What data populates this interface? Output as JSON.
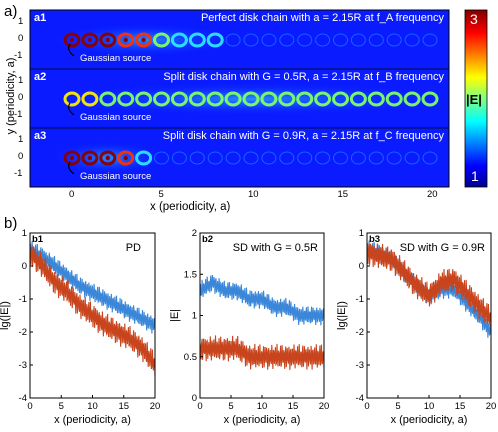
{
  "panel_a": {
    "label": "a)",
    "ylabel": "y (periodicity, a)",
    "xlabel": "x (periodicity, a)",
    "xticks": [
      "0",
      "5",
      "10",
      "15",
      "20"
    ],
    "yticks": [
      "1",
      "0",
      "-1"
    ],
    "colorbar": {
      "max": "3",
      "min": "1",
      "label": "|E|"
    },
    "subpanels": [
      {
        "tag": "a1",
        "title": "Perfect disk chain with a = 2.15R at f_A frequency",
        "source": "Gaussian source"
      },
      {
        "tag": "a2",
        "title": "Split disk chain with G = 0.5R, a = 2.15R at f_B frequency",
        "source": "Gaussian source"
      },
      {
        "tag": "a3",
        "title": "Split disk chain with G = 0.9R, a = 2.15R at f_C frequency",
        "source": "Gaussian source"
      }
    ]
  },
  "panel_b": {
    "label": "b)",
    "colors": {
      "blue": "#3a86d8",
      "red": "#c8441c"
    }
  },
  "chart_data": [
    {
      "type": "line",
      "panel": "b1",
      "title": "PD",
      "xlabel": "x (periodicity, a)",
      "ylabel": "lg(|E|)",
      "xlim": [
        0,
        20
      ],
      "ylim": [
        -4,
        1
      ],
      "xticks": [
        "0",
        "5",
        "10",
        "15",
        "20"
      ],
      "yticks": [
        "1",
        "0",
        "-1",
        "-2",
        "-3",
        "-4"
      ],
      "series": [
        {
          "x": [
            0,
            2,
            4,
            6,
            8,
            10,
            12,
            14,
            16,
            18,
            20
          ],
          "values": [
            0.5,
            0.3,
            0.0,
            -0.3,
            -0.6,
            -0.8,
            -1.0,
            -1.2,
            -1.4,
            -1.6,
            -1.8
          ]
        },
        {
          "x": [
            0,
            2,
            4,
            6,
            8,
            10,
            12,
            14,
            16,
            18,
            20
          ],
          "values": [
            0.4,
            0.0,
            -0.5,
            -0.8,
            -1.2,
            -1.5,
            -1.8,
            -2.0,
            -2.2,
            -2.5,
            -3.0
          ]
        }
      ]
    },
    {
      "type": "line",
      "panel": "b2",
      "title": "SD with G = 0.5R",
      "xlabel": "x (periodicity, a)",
      "ylabel": "|E|",
      "xlim": [
        0,
        20
      ],
      "ylim": [
        0,
        2
      ],
      "xticks": [
        "0",
        "5",
        "10",
        "15",
        "20"
      ],
      "yticks": [
        "2",
        "1.5",
        "1",
        "0.5",
        "0"
      ],
      "series": [
        {
          "x": [
            0,
            2,
            4,
            6,
            8,
            10,
            12,
            14,
            16,
            18,
            20
          ],
          "values": [
            1.3,
            1.4,
            1.3,
            1.3,
            1.2,
            1.2,
            1.1,
            1.1,
            1.0,
            1.0,
            1.0
          ]
        },
        {
          "x": [
            0,
            2,
            4,
            6,
            8,
            10,
            12,
            14,
            16,
            18,
            20
          ],
          "values": [
            0.6,
            0.6,
            0.6,
            0.6,
            0.5,
            0.5,
            0.5,
            0.5,
            0.5,
            0.5,
            0.5
          ]
        }
      ]
    },
    {
      "type": "line",
      "panel": "b3",
      "title": "SD with G = 0.9R",
      "xlabel": "x (periodicity, a)",
      "ylabel": "lg(|E|)",
      "xlim": [
        0,
        20
      ],
      "ylim": [
        -4,
        1
      ],
      "xticks": [
        "0",
        "5",
        "10",
        "15",
        "20"
      ],
      "yticks": [
        "1",
        "0",
        "-1",
        "-2",
        "-3",
        "-4"
      ],
      "series": [
        {
          "x": [
            0,
            2,
            4,
            6,
            8,
            10,
            12,
            14,
            16,
            18,
            20
          ],
          "values": [
            0.5,
            0.4,
            0.2,
            -0.2,
            -0.6,
            -0.9,
            -0.7,
            -0.7,
            -1.1,
            -1.5,
            -2.0
          ]
        },
        {
          "x": [
            0,
            2,
            4,
            6,
            8,
            10,
            12,
            14,
            16,
            18,
            20
          ],
          "values": [
            0.4,
            0.3,
            0.2,
            -0.2,
            -0.6,
            -0.9,
            -0.5,
            -0.4,
            -0.8,
            -1.2,
            -1.6
          ]
        }
      ]
    }
  ]
}
